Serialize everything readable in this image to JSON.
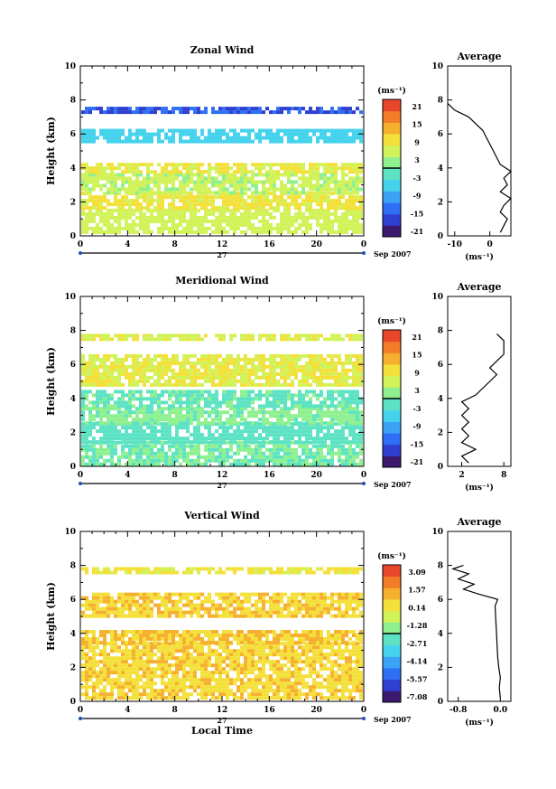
{
  "figure": {
    "x_label": "Local Time",
    "date_label": "27",
    "month_label": "Sep 2007",
    "x_ticks": [
      "0",
      "4",
      "8",
      "12",
      "16",
      "20",
      "0"
    ],
    "y_label": "Height (km)",
    "y_ticks": [
      "0",
      "2",
      "4",
      "6",
      "8",
      "10"
    ],
    "unit_label": "(ms⁻¹)",
    "avg_title": "Average"
  },
  "chart_data": [
    {
      "type": "heatmap",
      "title": "Zonal Wind",
      "xlabel": "",
      "ylabel": "Height (km)",
      "xlim": [
        0,
        24
      ],
      "ylim": [
        0,
        10
      ],
      "colorbar_label": "(ms⁻¹)",
      "colorbar_ticks": [
        "21",
        "15",
        "9",
        "3",
        "-3",
        "-9",
        "-15",
        "-21"
      ],
      "colorbar_range": [
        -24,
        24
      ],
      "layers": [
        {
          "y": [
            0.3,
            1.6
          ],
          "value": 6
        },
        {
          "y": [
            1.6,
            2.6
          ],
          "value": 9
        },
        {
          "y": [
            2.6,
            3.7
          ],
          "value": 5
        },
        {
          "y": [
            3.7,
            4.3
          ],
          "value": 8
        },
        {
          "y": [
            5.5,
            6.3
          ],
          "value": -6
        },
        {
          "y": [
            7.2,
            7.6
          ],
          "value": -16
        }
      ],
      "average_profile": {
        "xlabel": "(ms⁻¹)",
        "xticks": [
          "-10",
          "0"
        ],
        "xlim": [
          -12,
          6
        ],
        "height": [
          0.2,
          0.6,
          1.0,
          1.4,
          1.8,
          2.2,
          2.6,
          3.0,
          3.4,
          3.8,
          4.2,
          4.6,
          5.0,
          5.4,
          5.8,
          6.2,
          6.6,
          7.0,
          7.4,
          7.8
        ],
        "value": [
          3,
          4,
          5,
          3,
          4,
          6,
          3,
          5,
          4,
          6,
          3,
          2,
          1,
          0,
          -1,
          -2,
          -4,
          -6,
          -10,
          -12
        ]
      }
    },
    {
      "type": "heatmap",
      "title": "Meridional Wind",
      "xlabel": "",
      "ylabel": "Height (km)",
      "xlim": [
        0,
        24
      ],
      "ylim": [
        0,
        10
      ],
      "colorbar_label": "(ms⁻¹)",
      "colorbar_ticks": [
        "21",
        "15",
        "9",
        "3",
        "-3",
        "-9",
        "-15",
        "-21"
      ],
      "colorbar_range": [
        -24,
        24
      ],
      "layers": [
        {
          "y": [
            0.2,
            1.5
          ],
          "value": 0
        },
        {
          "y": [
            1.5,
            2.6
          ],
          "value": -2
        },
        {
          "y": [
            2.6,
            3.5
          ],
          "value": 1
        },
        {
          "y": [
            3.5,
            4.5
          ],
          "value": -1
        },
        {
          "y": [
            4.8,
            6.6
          ],
          "value": 8
        },
        {
          "y": [
            7.4,
            7.8
          ],
          "value": 7
        }
      ],
      "average_profile": {
        "xlabel": "(ms⁻¹)",
        "xticks": [
          "2",
          "8"
        ],
        "xlim": [
          0,
          9
        ],
        "height": [
          0.2,
          0.6,
          1.0,
          1.4,
          1.8,
          2.2,
          2.6,
          3.0,
          3.4,
          3.8,
          4.2,
          4.6,
          5.0,
          5.4,
          5.8,
          6.2,
          6.6,
          7.0,
          7.4,
          7.8
        ],
        "value": [
          3,
          2,
          4,
          2,
          3,
          2,
          3,
          2,
          3,
          2,
          4,
          5,
          6,
          7,
          6,
          7,
          8,
          8,
          8,
          7
        ]
      }
    },
    {
      "type": "heatmap",
      "title": "Vertical Wind",
      "xlabel": "Local Time",
      "ylabel": "Height (km)",
      "xlim": [
        0,
        24
      ],
      "ylim": [
        0,
        10
      ],
      "colorbar_label": "(ms⁻¹)",
      "colorbar_ticks": [
        "3.09",
        "1.57",
        "0.14",
        "-1.28",
        "-2.71",
        "-4.14",
        "-5.57",
        "-7.08"
      ],
      "colorbar_range": [
        -8,
        4
      ],
      "layers": [
        {
          "y": [
            0.2,
            3.5
          ],
          "value": 0.8
        },
        {
          "y": [
            3.5,
            4.2
          ],
          "value": 1.0
        },
        {
          "y": [
            5.0,
            6.4
          ],
          "value": 0.9
        },
        {
          "y": [
            7.5,
            7.9
          ],
          "value": 0.2
        }
      ],
      "average_profile": {
        "xlabel": "(ms⁻¹)",
        "xticks": [
          "-0.8",
          "0.0"
        ],
        "xlim": [
          -1.0,
          0.2
        ],
        "height": [
          0.2,
          0.8,
          1.4,
          2.0,
          2.6,
          3.2,
          3.8,
          4.4,
          5.0,
          5.6,
          6.0,
          6.3,
          6.6,
          6.9,
          7.2,
          7.5,
          7.8,
          8.0
        ],
        "value": [
          0.0,
          -0.02,
          0.0,
          -0.03,
          -0.05,
          -0.06,
          -0.07,
          -0.08,
          -0.09,
          -0.1,
          -0.05,
          -0.4,
          -0.7,
          -0.5,
          -0.8,
          -0.6,
          -0.9,
          -0.7
        ]
      }
    }
  ]
}
